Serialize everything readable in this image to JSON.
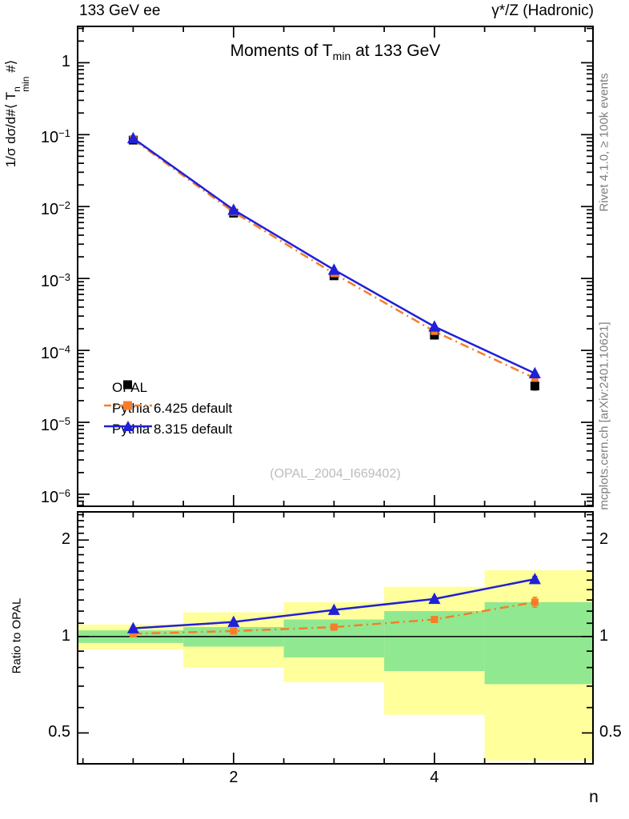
{
  "header": {
    "left": "133 GeV ee",
    "right": "γ*/Z (Hadronic)"
  },
  "side_notes": {
    "top": "Rivet 4.1.0, ≥ 100k events",
    "bottom": "mcplots.cern.ch [arXiv:2401.10621]"
  },
  "titles": {
    "main_pre": "Moments of T",
    "main_sub": "min",
    "main_post": " at 133 GeV",
    "ylabel_pre": "1/σ  dσ/d#⟨ T",
    "ylabel_sup": "n",
    "ylabel_sub": "min",
    "ylabel_post": " #⟩",
    "ratio_ylabel": "Ratio to OPAL",
    "xlabel": "n"
  },
  "watermark": "(OPAL_2004_I669402)",
  "legend": [
    {
      "label": "OPAL",
      "marker": "square",
      "color": "#000000",
      "line": "none"
    },
    {
      "label": "Pythia 6.425 default",
      "marker": "square",
      "color": "#f77d28",
      "line": "dashdot"
    },
    {
      "label": "Pythia 8.315 default",
      "marker": "triangle",
      "color": "#2020d8",
      "line": "solid"
    }
  ],
  "colors": {
    "opal": "#000000",
    "pythia6": "#f77d28",
    "pythia8": "#2020d8",
    "band_green": "#90e990",
    "band_yellow": "#ffff9b",
    "gray_text": "#7e7e7e"
  },
  "chart_data": {
    "type": "line",
    "title": "Moments of T_min at 133 GeV",
    "xlabel": "n",
    "ylabel": "1/σ dσ/d#⟨ T^n_min #⟩",
    "x": [
      1,
      2,
      3,
      4,
      5
    ],
    "xlim": [
      0.447,
      5.579
    ],
    "x_major_ticks": [
      {
        "t": "2",
        "v": 2
      },
      {
        "t": "4",
        "v": 4
      }
    ],
    "x_minor_step": 0.5,
    "main": {
      "ylog": true,
      "ylim": [
        6.8e-07,
        3.2
      ],
      "yticks": [
        {
          "t": "1",
          "v": 1
        },
        {
          "t": "10",
          "e": "−1",
          "v": 0.1
        },
        {
          "t": "10",
          "e": "−2",
          "v": 0.01
        },
        {
          "t": "10",
          "e": "−3",
          "v": 0.001
        },
        {
          "t": "10",
          "e": "−4",
          "v": 0.0001
        },
        {
          "t": "10",
          "e": "−5",
          "v": 1e-05
        },
        {
          "t": "10",
          "e": "−6",
          "v": 1e-06
        }
      ],
      "series": [
        {
          "name": "OPAL",
          "marker": "square",
          "color": "#000000",
          "line": "none",
          "values": [
            0.084,
            0.0081,
            0.00109,
            0.000163,
            3.2e-05
          ],
          "rel_err": [
            0.02,
            0.03,
            0.05,
            0.08,
            0.12
          ]
        },
        {
          "name": "Pythia 6.425 default",
          "marker": "square",
          "color": "#f77d28",
          "line": "dashdot",
          "values": [
            0.0857,
            0.0084,
            0.00117,
            0.000184,
            4.1e-05
          ],
          "rel_err": [
            0,
            0,
            0,
            0,
            0.03
          ]
        },
        {
          "name": "Pythia 8.315 default",
          "marker": "triangle",
          "color": "#2020d8",
          "line": "solid",
          "values": [
            0.089,
            0.009,
            0.00132,
            0.000214,
            4.8e-05
          ],
          "rel_err": [
            0,
            0,
            0,
            0,
            0.02
          ]
        }
      ]
    },
    "ratio": {
      "ylog": true,
      "ylim": [
        0.4005,
        2.449
      ],
      "yticks": [
        {
          "t": "2",
          "v": 2
        },
        {
          "t": "1",
          "v": 1
        },
        {
          "t": "0.5",
          "v": 0.5
        }
      ],
      "reference_line": 1,
      "bands": [
        {
          "x0": 0.447,
          "x1": 1.5,
          "green": [
            0.955,
            1.045
          ],
          "yellow": [
            0.91,
            1.09
          ]
        },
        {
          "x0": 1.5,
          "x1": 2.5,
          "green": [
            0.93,
            1.07
          ],
          "yellow": [
            0.8,
            1.19
          ]
        },
        {
          "x0": 2.5,
          "x1": 3.5,
          "green": [
            0.86,
            1.13
          ],
          "yellow": [
            0.72,
            1.28
          ]
        },
        {
          "x0": 3.5,
          "x1": 4.5,
          "green": [
            0.78,
            1.2
          ],
          "yellow": [
            0.57,
            1.43
          ]
        },
        {
          "x0": 4.5,
          "x1": 5.579,
          "green": [
            0.71,
            1.28
          ],
          "yellow": [
            0.41,
            1.61
          ]
        }
      ],
      "series": [
        {
          "name": "Pythia 6.425 default",
          "marker": "square",
          "color": "#f77d28",
          "line": "dashdot",
          "values": [
            1.02,
            1.04,
            1.07,
            1.13,
            1.28
          ],
          "errs": [
            0.006,
            0.006,
            0.01,
            0.015,
            0.045
          ]
        },
        {
          "name": "Pythia 8.315 default",
          "marker": "triangle",
          "color": "#2020d8",
          "line": "solid",
          "values": [
            1.06,
            1.11,
            1.21,
            1.31,
            1.51
          ],
          "errs": [
            0.006,
            0.008,
            0.012,
            0.018,
            0.03
          ]
        }
      ]
    }
  }
}
